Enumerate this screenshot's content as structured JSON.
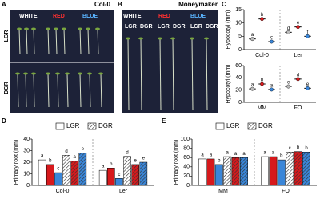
{
  "panel_a": {
    "label": "A",
    "title": "Col-0",
    "columns": [
      "WHITE",
      "RED",
      "BLUE"
    ],
    "rows": [
      "LGR",
      "DGR"
    ]
  },
  "panel_b": {
    "label": "B",
    "title": "Moneymaker",
    "columns": [
      "WHITE",
      "RED",
      "BLUE"
    ],
    "subcolumns": [
      "LGR",
      "DGR"
    ]
  },
  "chart_data": [
    {
      "type": "dot",
      "panel": "C",
      "ylabel": "Hypocotyl (mm)",
      "categories": [
        "Col-0",
        "Ler"
      ],
      "ylim": [
        0,
        15
      ],
      "yticks": [
        0,
        5,
        10,
        15
      ],
      "series": [
        {
          "color": "#ffffff",
          "hatch": false,
          "values": [
            4,
            6.5
          ],
          "letters": [
            "a",
            "d"
          ]
        },
        {
          "color": "#d7191c",
          "hatch": false,
          "values": [
            11.5,
            8.5
          ],
          "letters": [
            "b",
            "e"
          ]
        },
        {
          "color": "#3a86d8",
          "hatch": false,
          "values": [
            3,
            5
          ],
          "letters": [
            "c",
            "f"
          ]
        }
      ]
    },
    {
      "type": "dot",
      "ylabel": "Hypocotyl (mm)",
      "categories": [
        "MM",
        "FO"
      ],
      "ylim": [
        0,
        60
      ],
      "yticks": [
        0,
        20,
        40,
        60
      ],
      "series": [
        {
          "color": "#ffffff",
          "hatch": false,
          "values": [
            22,
            26
          ],
          "letters": [
            "a",
            "c"
          ]
        },
        {
          "color": "#d7191c",
          "hatch": false,
          "values": [
            30,
            38
          ],
          "letters": [
            "b",
            "d"
          ]
        },
        {
          "color": "#3a86d8",
          "hatch": false,
          "values": [
            21,
            23
          ],
          "letters": [
            "a",
            "e"
          ]
        }
      ]
    },
    {
      "type": "bar",
      "panel": "D",
      "ylabel": "Primary root (mm)",
      "categories": [
        "Col-0",
        "Ler"
      ],
      "ylim": [
        0,
        40
      ],
      "yticks": [
        0,
        10,
        20,
        30,
        40
      ],
      "legend": [
        {
          "name": "LGR",
          "hatch": false
        },
        {
          "name": "DGR",
          "hatch": true
        }
      ],
      "series": [
        {
          "color": "#ffffff",
          "hatch": false,
          "values": [
            22,
            13
          ],
          "letters": [
            "a",
            "a"
          ]
        },
        {
          "color": "#d7191c",
          "hatch": false,
          "values": [
            18,
            15
          ],
          "letters": [
            "b",
            "b"
          ]
        },
        {
          "color": "#3a86d8",
          "hatch": false,
          "values": [
            11,
            6
          ],
          "letters": [
            "c",
            "c"
          ]
        },
        {
          "color": "#ffffff",
          "hatch": true,
          "values": [
            26,
            25
          ],
          "letters": [
            "d",
            "d"
          ]
        },
        {
          "color": "#d7191c",
          "hatch": true,
          "values": [
            21,
            18
          ],
          "letters": [
            "a",
            "e"
          ]
        },
        {
          "color": "#3a86d8",
          "hatch": true,
          "values": [
            28,
            20
          ],
          "letters": [
            "e",
            "e"
          ]
        }
      ]
    },
    {
      "type": "bar",
      "panel": "E",
      "ylabel": "Primary root (mm)",
      "categories": [
        "MM",
        "FO"
      ],
      "ylim": [
        0,
        100
      ],
      "yticks": [
        0,
        20,
        40,
        60,
        80,
        100
      ],
      "legend": [
        {
          "name": "LGR",
          "hatch": false
        },
        {
          "name": "DGR",
          "hatch": true
        }
      ],
      "series": [
        {
          "color": "#ffffff",
          "hatch": false,
          "values": [
            57,
            62
          ],
          "letters": [
            "a",
            "a"
          ]
        },
        {
          "color": "#d7191c",
          "hatch": false,
          "values": [
            57,
            62
          ],
          "letters": [
            "a",
            "a"
          ]
        },
        {
          "color": "#3a86d8",
          "hatch": false,
          "values": [
            45,
            55
          ],
          "letters": [
            "b",
            "b"
          ]
        },
        {
          "color": "#ffffff",
          "hatch": true,
          "values": [
            62,
            72
          ],
          "letters": [
            "a",
            "c"
          ]
        },
        {
          "color": "#d7191c",
          "hatch": true,
          "values": [
            60,
            73
          ],
          "letters": [
            "a",
            "b"
          ]
        },
        {
          "color": "#3a86d8",
          "hatch": true,
          "values": [
            60,
            72
          ],
          "letters": [
            "a",
            "b"
          ]
        }
      ]
    }
  ]
}
